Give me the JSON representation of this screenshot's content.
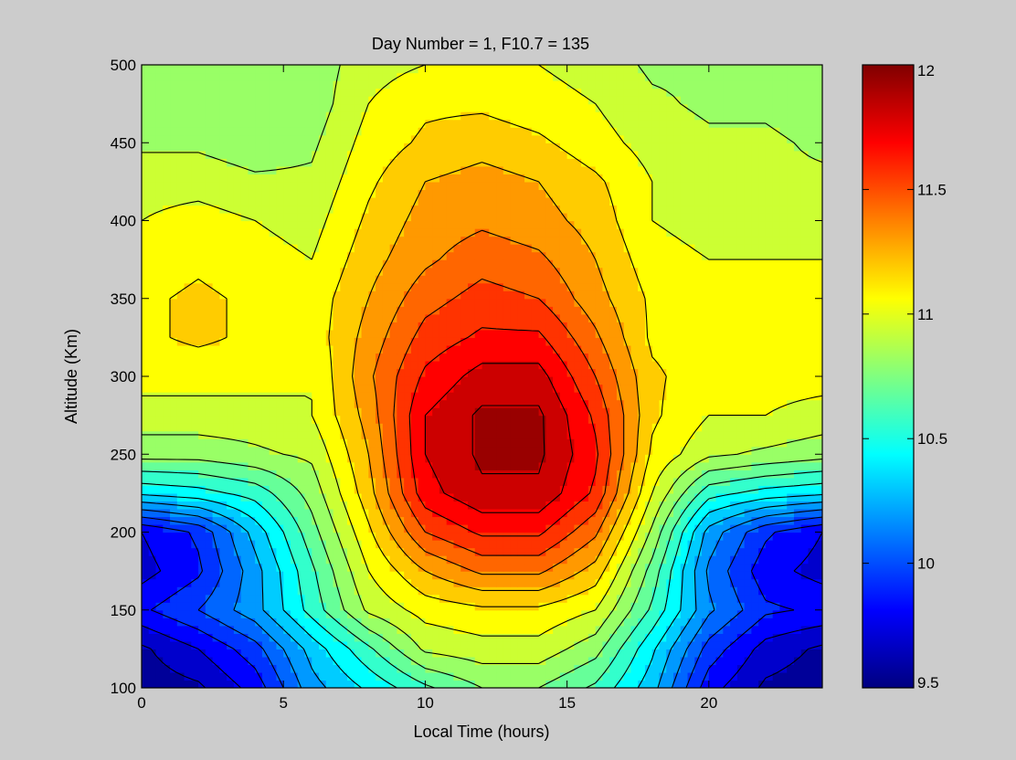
{
  "chart_data": {
    "type": "heatmap",
    "subtype": "filled-contour",
    "title": "Day Number = 1, F10.7 = 135",
    "xlabel": "Local Time (hours)",
    "ylabel": "Altitude (Km)",
    "xlim": [
      0,
      24
    ],
    "ylim": [
      100,
      500
    ],
    "x_ticks": [
      "0",
      "5",
      "10",
      "15",
      "20"
    ],
    "x_tick_values": [
      0,
      5,
      10,
      15,
      20
    ],
    "y_ticks": [
      "100",
      "150",
      "200",
      "250",
      "300",
      "350",
      "400",
      "450",
      "500"
    ],
    "y_tick_values": [
      100,
      150,
      200,
      250,
      300,
      350,
      400,
      450,
      500
    ],
    "colorbar": {
      "min": 9.5,
      "max": 12,
      "tick_labels": [
        "9.5",
        "10",
        "10.5",
        "11",
        "11.5",
        "12"
      ],
      "tick_values": [
        9.5,
        10,
        10.5,
        11,
        11.5,
        12
      ],
      "colormap": "jet"
    },
    "levels": [
      9.625,
      9.75,
      9.875,
      10.0,
      10.125,
      10.25,
      10.375,
      10.5,
      10.625,
      10.75,
      10.875,
      11.0,
      11.125,
      11.25,
      11.375,
      11.5,
      11.625,
      11.75,
      11.875
    ],
    "x": [
      0,
      2,
      4,
      6,
      8,
      10,
      12,
      14,
      16,
      18,
      20,
      22,
      24
    ],
    "y": [
      100,
      125,
      150,
      175,
      200,
      225,
      250,
      275,
      300,
      325,
      350,
      375,
      400,
      425,
      450,
      475,
      500
    ],
    "z": [
      [
        9.55,
        9.6,
        9.8,
        10.2,
        10.4,
        10.6,
        10.75,
        10.75,
        10.6,
        10.3,
        9.8,
        9.6,
        9.55
      ],
      [
        9.6,
        9.75,
        9.95,
        10.3,
        10.6,
        10.9,
        10.95,
        10.95,
        10.8,
        10.4,
        9.95,
        9.7,
        9.6
      ],
      [
        9.85,
        10.0,
        10.2,
        10.55,
        10.9,
        11.05,
        11.1,
        11.1,
        11.0,
        10.6,
        10.15,
        9.9,
        9.85
      ],
      [
        9.7,
        9.85,
        10.2,
        10.6,
        11.0,
        11.25,
        11.4,
        11.4,
        11.2,
        10.7,
        10.1,
        9.8,
        9.7
      ],
      [
        9.75,
        9.9,
        10.3,
        10.7,
        11.1,
        11.5,
        11.65,
        11.65,
        11.4,
        10.85,
        10.2,
        9.9,
        9.75
      ],
      [
        10.4,
        10.45,
        10.55,
        10.8,
        11.2,
        11.7,
        11.85,
        11.85,
        11.6,
        11.0,
        10.55,
        10.45,
        10.4
      ],
      [
        10.8,
        10.8,
        10.85,
        10.9,
        11.25,
        11.75,
        11.9,
        11.9,
        11.65,
        11.1,
        10.9,
        10.85,
        10.8
      ],
      [
        10.95,
        10.95,
        10.95,
        11.0,
        11.3,
        11.75,
        11.9,
        11.9,
        11.6,
        11.15,
        11.0,
        11.0,
        10.95
      ],
      [
        11.05,
        11.05,
        11.05,
        11.0,
        11.35,
        11.65,
        11.8,
        11.8,
        11.5,
        11.15,
        11.05,
        11.05,
        11.05
      ],
      [
        11.1,
        11.15,
        11.1,
        11.05,
        11.3,
        11.55,
        11.65,
        11.65,
        11.4,
        11.1,
        11.05,
        11.05,
        11.1
      ],
      [
        11.1,
        11.15,
        11.1,
        11.05,
        11.25,
        11.45,
        11.55,
        11.5,
        11.3,
        11.1,
        11.05,
        11.05,
        11.05
      ],
      [
        11.05,
        11.1,
        11.05,
        11.0,
        11.2,
        11.35,
        11.45,
        11.4,
        11.25,
        11.05,
        11.0,
        11.0,
        11.0
      ],
      [
        11.0,
        11.05,
        11.0,
        10.95,
        11.15,
        11.3,
        11.35,
        11.3,
        11.2,
        11.0,
        10.95,
        10.95,
        10.95
      ],
      [
        10.95,
        10.95,
        10.9,
        10.9,
        11.1,
        11.25,
        11.3,
        11.25,
        11.15,
        11.0,
        10.95,
        10.9,
        10.9
      ],
      [
        10.85,
        10.85,
        10.8,
        10.85,
        11.05,
        11.15,
        11.2,
        11.15,
        11.05,
        10.95,
        10.9,
        10.9,
        10.85
      ],
      [
        10.8,
        10.75,
        10.75,
        10.8,
        11.0,
        11.1,
        11.1,
        11.05,
        11.0,
        10.9,
        10.85,
        10.85,
        10.8
      ],
      [
        10.85,
        10.8,
        10.8,
        10.8,
        10.95,
        11.0,
        11.0,
        11.0,
        10.95,
        10.85,
        10.85,
        10.85,
        10.85
      ]
    ]
  }
}
